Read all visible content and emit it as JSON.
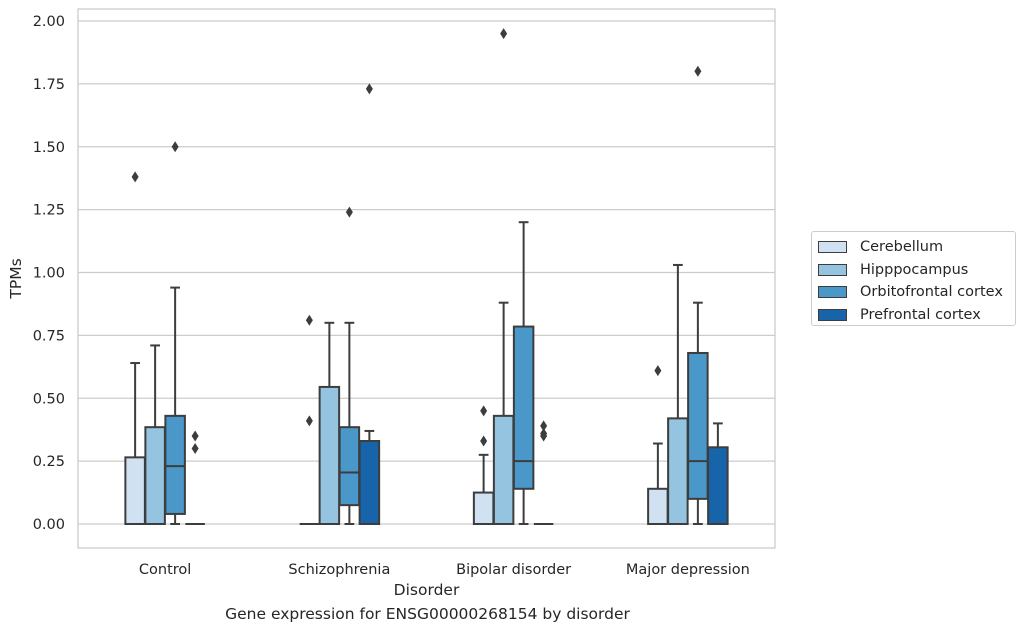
{
  "caption": "Gene expression for ENSG00000268154 by disorder",
  "chart_data": {
    "type": "box",
    "title": "",
    "xlabel": "Disorder",
    "ylabel": "TPMs",
    "ylim": [
      -0.1,
      2.04
    ],
    "yticks": [
      "0.00",
      "0.25",
      "0.50",
      "0.75",
      "1.00",
      "1.25",
      "1.50",
      "1.75",
      "2.00"
    ],
    "ytick_values": [
      0,
      0.25,
      0.5,
      0.75,
      1.0,
      1.25,
      1.5,
      1.75,
      2.0
    ],
    "grid": "horizontal",
    "legend_position": "right",
    "categories": [
      "Control",
      "Schizophrenia",
      "Bipolar disorder",
      "Major depression"
    ],
    "series": [
      {
        "name": "Cerebellum",
        "color": "#d0e1f2",
        "boxes": [
          {
            "q1": 0,
            "median": 0,
            "q3": 0.265,
            "whislo": 0,
            "whishi": 0.64,
            "fliers": [
              1.38
            ]
          },
          {
            "q1": 0,
            "median": 0,
            "q3": 0,
            "whislo": 0,
            "whishi": 0,
            "fliers": [
              0.41,
              0.81
            ]
          },
          {
            "q1": 0,
            "median": 0,
            "q3": 0.125,
            "whislo": 0,
            "whishi": 0.275,
            "fliers": [
              0.33,
              0.45
            ]
          },
          {
            "q1": 0,
            "median": 0,
            "q3": 0.14,
            "whislo": 0,
            "whishi": 0.32,
            "fliers": [
              0.61
            ]
          }
        ]
      },
      {
        "name": "Hipppocampus",
        "color": "#94c4df",
        "boxes": [
          {
            "q1": 0,
            "median": 0,
            "q3": 0.385,
            "whislo": 0,
            "whishi": 0.71,
            "fliers": []
          },
          {
            "q1": 0,
            "median": 0,
            "q3": 0.545,
            "whislo": 0,
            "whishi": 0.8,
            "fliers": []
          },
          {
            "q1": 0,
            "median": 0,
            "q3": 0.43,
            "whislo": 0,
            "whishi": 0.88,
            "fliers": [
              1.95
            ]
          },
          {
            "q1": 0,
            "median": 0,
            "q3": 0.42,
            "whislo": 0,
            "whishi": 1.03,
            "fliers": []
          }
        ]
      },
      {
        "name": "Orbitofrontal cortex",
        "color": "#4a98c9",
        "boxes": [
          {
            "q1": 0.04,
            "median": 0.23,
            "q3": 0.43,
            "whislo": 0,
            "whishi": 0.94,
            "fliers": [
              1.5
            ]
          },
          {
            "q1": 0.075,
            "median": 0.205,
            "q3": 0.385,
            "whislo": 0,
            "whishi": 0.8,
            "fliers": [
              1.24
            ]
          },
          {
            "q1": 0.14,
            "median": 0.25,
            "q3": 0.785,
            "whislo": 0,
            "whishi": 1.2,
            "fliers": []
          },
          {
            "q1": 0.1,
            "median": 0.25,
            "q3": 0.68,
            "whislo": 0,
            "whishi": 0.88,
            "fliers": [
              1.8
            ]
          }
        ]
      },
      {
        "name": "Prefrontal cortex",
        "color": "#1764ab",
        "boxes": [
          {
            "q1": 0,
            "median": 0,
            "q3": 0,
            "whislo": 0,
            "whishi": 0,
            "fliers": [
              0.3,
              0.35
            ]
          },
          {
            "q1": 0,
            "median": 0,
            "q3": 0.33,
            "whislo": 0,
            "whishi": 0.37,
            "fliers": [
              1.73
            ]
          },
          {
            "q1": 0,
            "median": 0,
            "q3": 0,
            "whislo": 0,
            "whishi": 0,
            "fliers": [
              0.35,
              0.36,
              0.39
            ]
          },
          {
            "q1": 0,
            "median": 0,
            "q3": 0.305,
            "whislo": 0,
            "whishi": 0.4,
            "fliers": []
          }
        ]
      }
    ]
  }
}
